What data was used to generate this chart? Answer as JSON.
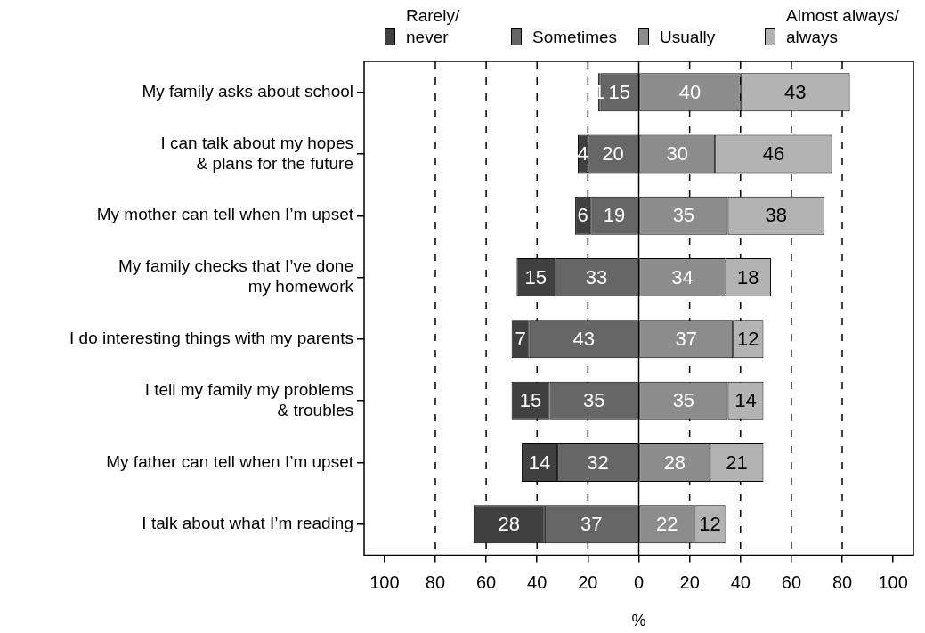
{
  "chart_data": {
    "type": "bar",
    "orientation": "horizontal",
    "categories": [
      "My family asks about school",
      "I can talk about my hopes\n& plans for the future",
      "My mother can tell when I’m upset",
      "My family checks that I’ve done\nmy homework",
      "I do interesting things with my parents",
      "I tell my family my problems\n& troubles",
      "My father can tell when I’m upset",
      "I talk about what I’m reading"
    ],
    "series": [
      {
        "name": "Rarely/\nnever",
        "color": "#404040",
        "values": [
          1,
          4,
          6,
          15,
          7,
          15,
          14,
          28
        ],
        "base": [
          -16,
          -24,
          -25,
          -48,
          -50,
          -50,
          -46,
          -65
        ]
      },
      {
        "name": "Sometimes",
        "color": "#666666",
        "values": [
          15,
          20,
          19,
          33,
          43,
          35,
          32,
          37
        ],
        "base": [
          -15,
          -20,
          -19,
          -33,
          -43,
          -35,
          -32,
          -37
        ]
      },
      {
        "name": "Usually",
        "color": "#8c8c8c",
        "values": [
          40,
          30,
          35,
          34,
          37,
          35,
          28,
          22
        ],
        "base": [
          0,
          0,
          0,
          0,
          0,
          0,
          0,
          0
        ]
      },
      {
        "name": "Almost always/\nalways",
        "color": "#b3b3b3",
        "values": [
          43,
          46,
          38,
          18,
          12,
          14,
          21,
          12
        ],
        "base": [
          40,
          30,
          35,
          34,
          37,
          35,
          28,
          22
        ]
      }
    ],
    "data_labels": true,
    "xlabel": "%",
    "xlim": [
      -108,
      108
    ],
    "xticks": [
      {
        "value": -100,
        "label": "100"
      },
      {
        "value": -80,
        "label": "80"
      },
      {
        "value": -60,
        "label": "60"
      },
      {
        "value": -40,
        "label": "40"
      },
      {
        "value": -20,
        "label": "20"
      },
      0,
      20,
      40,
      60,
      80,
      100
    ],
    "ref_lines": [
      {
        "axis": "x",
        "value": -80,
        "line_style": "dashed"
      },
      {
        "axis": "x",
        "value": -60,
        "line_style": "dashed"
      },
      {
        "axis": "x",
        "value": -40,
        "line_style": "dashed"
      },
      {
        "axis": "x",
        "value": -20,
        "line_style": "dashed"
      },
      {
        "axis": "x",
        "value": 0,
        "line_style": "solid"
      },
      {
        "axis": "x",
        "value": 20,
        "line_style": "dashed"
      },
      {
        "axis": "x",
        "value": 40,
        "line_style": "dashed"
      },
      {
        "axis": "x",
        "value": 60,
        "line_style": "dashed"
      },
      {
        "axis": "x",
        "value": 80,
        "line_style": "dashed"
      }
    ],
    "grid": false,
    "legend": "top"
  }
}
